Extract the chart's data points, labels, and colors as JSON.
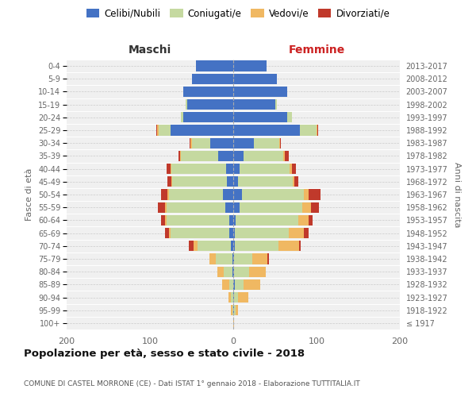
{
  "age_groups": [
    "100+",
    "95-99",
    "90-94",
    "85-89",
    "80-84",
    "75-79",
    "70-74",
    "65-69",
    "60-64",
    "55-59",
    "50-54",
    "45-49",
    "40-44",
    "35-39",
    "30-34",
    "25-29",
    "20-24",
    "15-19",
    "10-14",
    "5-9",
    "0-4"
  ],
  "birth_years": [
    "≤ 1917",
    "1918-1922",
    "1923-1927",
    "1928-1932",
    "1933-1937",
    "1938-1942",
    "1943-1947",
    "1948-1952",
    "1953-1957",
    "1958-1962",
    "1963-1967",
    "1968-1972",
    "1973-1977",
    "1978-1982",
    "1983-1987",
    "1988-1992",
    "1993-1997",
    "1998-2002",
    "2003-2007",
    "2008-2012",
    "2013-2017"
  ],
  "colors": {
    "celibi": "#4472c4",
    "coniugati": "#c5d9a0",
    "vedovi": "#f0b862",
    "divorziati": "#c0392b"
  },
  "maschi": {
    "celibi": [
      0,
      0,
      0,
      0,
      1,
      1,
      3,
      5,
      5,
      10,
      12,
      8,
      9,
      18,
      28,
      75,
      60,
      55,
      60,
      50,
      45
    ],
    "coniugati": [
      0,
      1,
      3,
      5,
      10,
      20,
      40,
      70,
      75,
      70,
      65,
      65,
      65,
      45,
      22,
      15,
      3,
      2,
      0,
      0,
      0
    ],
    "vedovi": [
      0,
      2,
      3,
      8,
      8,
      8,
      5,
      2,
      2,
      2,
      2,
      1,
      1,
      1,
      1,
      1,
      0,
      0,
      0,
      0,
      0
    ],
    "divorziati": [
      0,
      0,
      0,
      0,
      0,
      0,
      5,
      5,
      5,
      8,
      8,
      5,
      5,
      2,
      1,
      1,
      0,
      0,
      0,
      0,
      0
    ]
  },
  "femmine": {
    "celibi": [
      0,
      1,
      1,
      2,
      1,
      1,
      2,
      2,
      3,
      8,
      10,
      6,
      8,
      12,
      25,
      80,
      65,
      50,
      65,
      52,
      40
    ],
    "coniugati": [
      0,
      2,
      5,
      10,
      18,
      22,
      52,
      65,
      75,
      75,
      75,
      65,
      60,
      48,
      30,
      20,
      5,
      2,
      0,
      0,
      0
    ],
    "vedovi": [
      1,
      3,
      12,
      20,
      20,
      18,
      25,
      18,
      12,
      10,
      5,
      2,
      2,
      2,
      1,
      1,
      0,
      0,
      0,
      0,
      0
    ],
    "divorziati": [
      0,
      0,
      0,
      0,
      0,
      2,
      2,
      5,
      5,
      10,
      15,
      5,
      5,
      5,
      1,
      1,
      0,
      0,
      0,
      0,
      0
    ]
  },
  "xlim": 200,
  "title": "Popolazione per età, sesso e stato civile - 2018",
  "subtitle": "COMUNE DI CASTEL MORRONE (CE) - Dati ISTAT 1° gennaio 2018 - Elaborazione TUTTITALIA.IT",
  "ylabel_left": "Fasce di età",
  "ylabel_right": "Anni di nascita",
  "xlabel_left": "Maschi",
  "xlabel_right": "Femmine"
}
